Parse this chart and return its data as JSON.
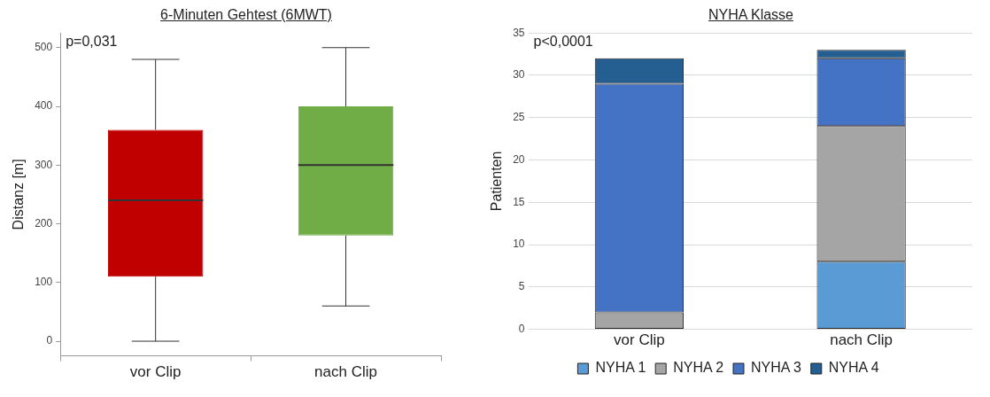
{
  "chart_data": [
    {
      "type": "box",
      "title": "6-Minuten Gehtest (6MWT)",
      "ylabel": "Distanz [m]",
      "categories": [
        "vor Clip",
        "nach Clip"
      ],
      "boxes": [
        {
          "low": 0,
          "q1": 110,
          "median": 240,
          "q3": 360,
          "high": 480
        },
        {
          "low": 60,
          "q1": 180,
          "median": 300,
          "q3": 400,
          "high": 500
        }
      ],
      "colors": [
        "#c00000",
        "#70ad47"
      ],
      "ylim": [
        -25,
        525
      ],
      "yticks": [
        0,
        100,
        200,
        300,
        400,
        500
      ],
      "annotations": [
        "p=0,031"
      ]
    },
    {
      "type": "bar",
      "title": "NYHA Klasse",
      "ylabel": "Patienten",
      "categories": [
        "vor Clip",
        "nach Clip"
      ],
      "stacked": true,
      "series": [
        {
          "name": "NYHA 1",
          "color": "#5b9bd5",
          "values": [
            0,
            8
          ]
        },
        {
          "name": "NYHA 2",
          "color": "#a5a5a5",
          "values": [
            2,
            16
          ]
        },
        {
          "name": "NYHA 3",
          "color": "#4472c4",
          "values": [
            27,
            8
          ]
        },
        {
          "name": "NYHA 4",
          "color": "#255e91",
          "values": [
            3,
            1
          ]
        }
      ],
      "ylim": [
        0,
        35
      ],
      "yticks": [
        0,
        5,
        10,
        15,
        20,
        25,
        30,
        35
      ],
      "grid": "y",
      "legend": "bottom",
      "annotations": [
        "p<0,0001"
      ]
    }
  ]
}
